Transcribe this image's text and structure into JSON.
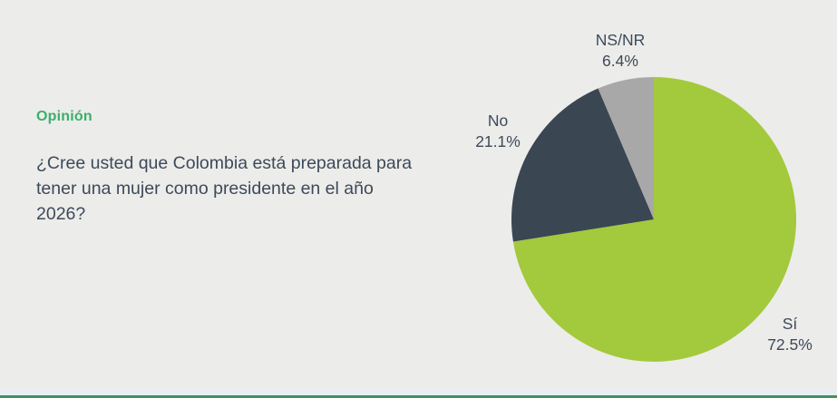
{
  "panel": {
    "section_label": "Opinión",
    "question": "¿Cree usted que Colombia está preparada para tener una mujer como presidente en el año 2026?"
  },
  "chart_data": {
    "type": "pie",
    "title": "",
    "categories": [
      "Sí",
      "No",
      "NS/NR"
    ],
    "values": [
      72.5,
      21.1,
      6.4
    ],
    "slices": [
      {
        "label": "Sí",
        "value": 72.5,
        "display": "72.5%",
        "color": "#a3c93c"
      },
      {
        "label": "No",
        "value": 21.1,
        "display": "21.1%",
        "color": "#3a4652"
      },
      {
        "label": "NS/NR",
        "value": 6.4,
        "display": "6.4%",
        "color": "#a8a8a8"
      }
    ],
    "start_angle_deg": 0,
    "direction": "clockwise",
    "legend_position": "labels-outside"
  },
  "colors": {
    "background": "#ececea",
    "accent_green": "#3ab06a",
    "text_dark": "#3d4a59",
    "pie_si": "#a3c93c",
    "pie_no": "#3a4652",
    "pie_nsnr": "#a8a8a8",
    "footer_strip": "#e9eef1",
    "footer_line": "#43915c"
  }
}
